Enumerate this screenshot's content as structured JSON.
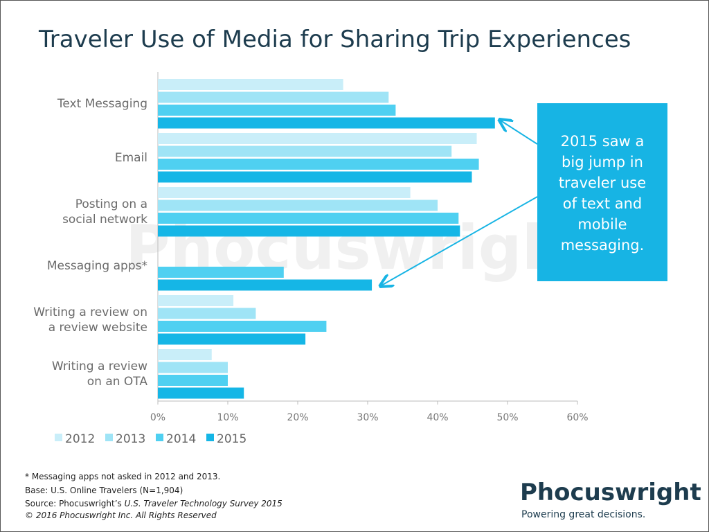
{
  "chart_data": {
    "type": "hbar",
    "title": "Traveler Use of Media for Sharing Trip Experiences",
    "categories": [
      "Text Messaging",
      "Email",
      "Posting on a\nsocial network",
      "Messaging apps*",
      "Writing a review on\na review website",
      "Writing a review\non an OTA"
    ],
    "series": [
      {
        "name": "2012",
        "color": "#c9eef9",
        "values": [
          26.5,
          45.6,
          36.1,
          null,
          10.8,
          7.7
        ]
      },
      {
        "name": "2013",
        "color": "#9fe4f6",
        "values": [
          33,
          42,
          40,
          null,
          14,
          10
        ]
      },
      {
        "name": "2014",
        "color": "#4fd0f1",
        "values": [
          34,
          45.9,
          43,
          18,
          24.1,
          10
        ]
      },
      {
        "name": "2015",
        "color": "#15b6e6",
        "values": [
          48.2,
          44.9,
          43.2,
          30.6,
          21.1,
          12.3
        ]
      }
    ],
    "xlim": [
      0,
      60
    ],
    "xticks": [
      {
        "value": 0,
        "label": "0%"
      },
      {
        "value": 10,
        "label": "10%"
      },
      {
        "value": 20,
        "label": "20%"
      },
      {
        "value": 30,
        "label": "30%"
      },
      {
        "value": 40,
        "label": "40%"
      },
      {
        "value": 50,
        "label": "50%"
      },
      {
        "value": 60,
        "label": "60%"
      }
    ],
    "legend": "bottom-left",
    "annotation": "2015 saw a big jump in traveler use of text and mobile messaging.",
    "footnote": "* Messaging apps not asked in 2012 and 2013.",
    "base": "Base: U.S. Online Travelers (N=1,904)",
    "source_prefix": "Source: Phocuswright’s",
    "source_title": "U.S. Traveler Technology Survey 2015",
    "copyright": "© 2016 Phocuswright Inc. All Rights Reserved",
    "brand": "Phocuswright",
    "tagline": "Powering great decisions."
  }
}
